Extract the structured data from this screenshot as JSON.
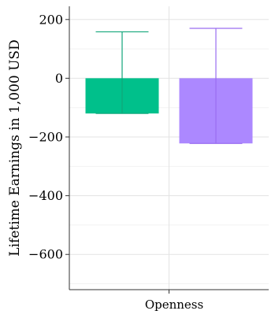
{
  "chart_data": {
    "type": "bar",
    "categories": [
      "Openness"
    ],
    "xlabel": "",
    "ylabel": "Lifetime Earnings in 1,000 USD",
    "ylim": [
      -720,
      245
    ],
    "yticks": [
      200,
      0,
      -200,
      -400,
      -600
    ],
    "ytick_labels": [
      "200",
      "0",
      "−200",
      "−400",
      "−600"
    ],
    "grid": true,
    "legend": "none",
    "series": [
      {
        "value": -120,
        "error_upper": 158,
        "fill": "#00c08b",
        "stroke": "#12a57a"
      },
      {
        "value": -222,
        "error_upper": 170,
        "fill": "#ac88ff",
        "stroke": "#9a6ef0"
      }
    ],
    "colors": {
      "axis": "#333333",
      "grid_major": "#e3e3e3",
      "grid_minor": "#f2f2f2",
      "text": "#000000"
    }
  }
}
